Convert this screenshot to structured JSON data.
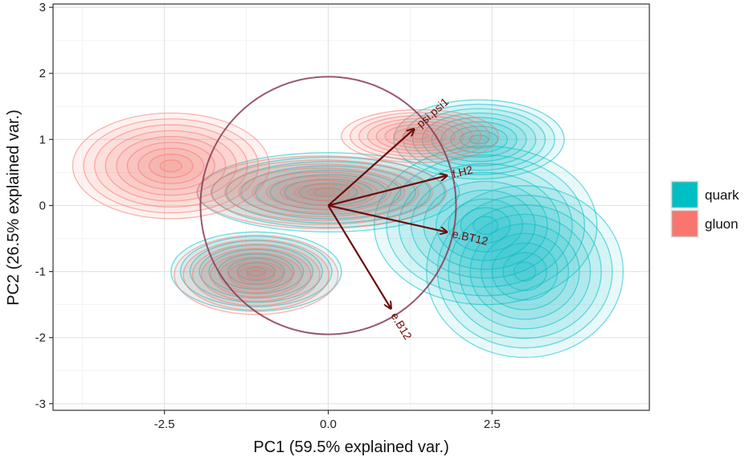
{
  "chart_data": {
    "type": "scatter",
    "subtype": "pca-biplot-density-contours",
    "title": "",
    "xlabel": "PC1 (59.5% explained var.)",
    "ylabel": "PC2 (26.5% explained var.)",
    "xlim": [
      -4.2,
      4.9
    ],
    "ylim": [
      -3.1,
      3.05
    ],
    "x_ticks": [
      {
        "value": -2.5,
        "label": "-2.5"
      },
      {
        "value": 0,
        "label": "0.0"
      },
      {
        "value": 2.5,
        "label": "2.5"
      }
    ],
    "y_ticks": [
      {
        "value": -3,
        "label": "-3"
      },
      {
        "value": -2,
        "label": "-2"
      },
      {
        "value": -1,
        "label": "-1"
      },
      {
        "value": 0,
        "label": "0"
      },
      {
        "value": 1,
        "label": "1"
      },
      {
        "value": 2,
        "label": "2"
      },
      {
        "value": 3,
        "label": "3"
      }
    ],
    "grid": true,
    "legend_position": "right",
    "series": [
      {
        "name": "quark",
        "color": "#00bfc4",
        "clusters": [
          {
            "center": [
              0.0,
              0.2
            ],
            "rx": 2.0,
            "ry": 0.6
          },
          {
            "center": [
              2.3,
              1.0
            ],
            "rx": 1.3,
            "ry": 0.6
          },
          {
            "center": [
              2.4,
              -0.3
            ],
            "rx": 1.7,
            "ry": 1.2
          },
          {
            "center": [
              -1.1,
              -1.0
            ],
            "rx": 1.3,
            "ry": 0.6
          },
          {
            "center": [
              3.0,
              -1.0
            ],
            "rx": 1.5,
            "ry": 1.3
          }
        ]
      },
      {
        "name": "gluon",
        "color": "#f8766d",
        "clusters": [
          {
            "center": [
              -0.1,
              0.2
            ],
            "rx": 1.9,
            "ry": 0.55
          },
          {
            "center": [
              -1.1,
              -1.05
            ],
            "rx": 1.25,
            "ry": 0.6
          },
          {
            "center": [
              1.4,
              1.05
            ],
            "rx": 1.2,
            "ry": 0.4
          },
          {
            "center": [
              -2.4,
              0.6
            ],
            "rx": 1.5,
            "ry": 0.8
          }
        ]
      }
    ],
    "correlation_circle": {
      "center": [
        0,
        0
      ],
      "radius": 1.95
    },
    "loadings": [
      {
        "name": "psi.psi1",
        "x": 1.3,
        "y": 1.15
      },
      {
        "name": "f.H2",
        "x": 1.8,
        "y": 0.45
      },
      {
        "name": "e.BT12",
        "x": 1.8,
        "y": -0.4
      },
      {
        "name": "e.B12",
        "x": 0.95,
        "y": -1.55
      }
    ],
    "arrow_color": "#6e0b0b"
  }
}
